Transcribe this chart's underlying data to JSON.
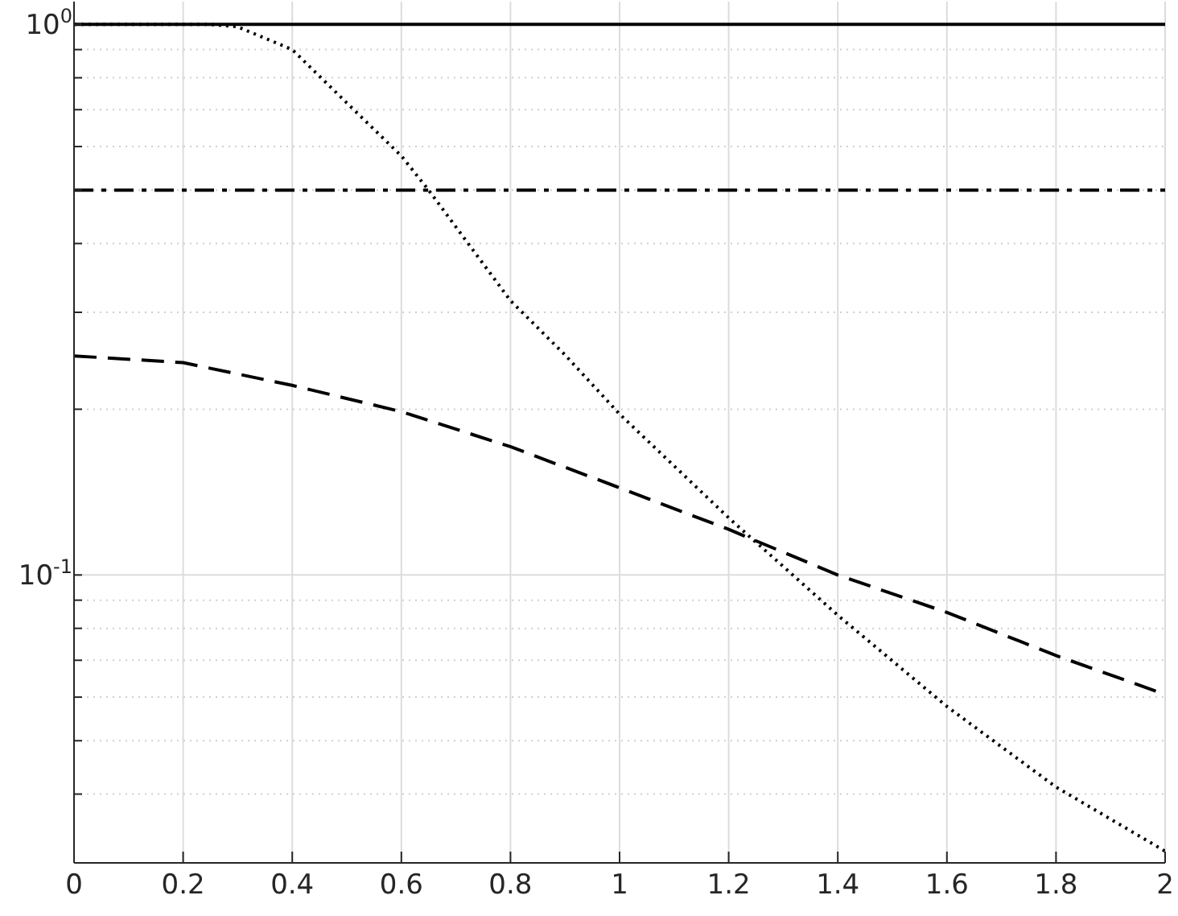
{
  "chart_data": {
    "type": "line",
    "log": "y",
    "grid": true,
    "xlim": [
      0,
      2
    ],
    "ylim": [
      0.03,
      1.1
    ],
    "xticks": [
      0,
      0.2,
      0.4,
      0.6,
      0.8,
      1,
      1.2,
      1.4,
      1.6,
      1.8,
      2
    ],
    "yticks": [
      {
        "value": 0.03,
        "label": null
      },
      {
        "value": 0.04,
        "label": null
      },
      {
        "value": 0.05,
        "label": null
      },
      {
        "value": 0.06,
        "label": null
      },
      {
        "value": 0.07,
        "label": null
      },
      {
        "value": 0.08,
        "label": null
      },
      {
        "value": 0.09,
        "label": null
      },
      {
        "value": 0.1,
        "label": "10$^{-1}$"
      },
      {
        "value": 0.2,
        "label": null
      },
      {
        "value": 0.3,
        "label": null
      },
      {
        "value": 0.4,
        "label": null
      },
      {
        "value": 0.5,
        "label": null
      },
      {
        "value": 0.6,
        "label": null
      },
      {
        "value": 0.7,
        "label": null
      },
      {
        "value": 0.8,
        "label": null
      },
      {
        "value": 0.9,
        "label": null
      },
      {
        "value": 1,
        "label": "10$^{0}$"
      }
    ],
    "series": [
      {
        "color": "#000000",
        "line_style": "solid",
        "x": [
          0,
          2
        ],
        "values": [
          1,
          1
        ]
      },
      {
        "color": "#000000",
        "line_style": "dash-dot",
        "x": [
          0,
          2
        ],
        "values": [
          0.5,
          0.5
        ]
      },
      {
        "color": "#000000",
        "line_style": "dashed",
        "x": [
          0,
          0.2,
          0.4,
          0.6,
          0.8,
          1,
          1.2,
          1.4,
          1.6,
          1.8,
          2
        ],
        "values": [
          0.25,
          0.243,
          0.221,
          0.198,
          0.171,
          0.144,
          0.121,
          0.1,
          0.0855,
          0.0714,
          0.0607
        ]
      },
      {
        "color": "#000000",
        "line_style": "dotted",
        "x": [
          0,
          0.25,
          0.3,
          0.4,
          0.5,
          0.6,
          0.65,
          0.8,
          0.9,
          1,
          1.2,
          1.4,
          1.6,
          1.8,
          2
        ],
        "values": [
          1,
          1,
          0.99,
          0.9,
          0.72,
          0.577,
          0.5,
          0.315,
          0.251,
          0.196,
          0.127,
          0.0845,
          0.0577,
          0.0412,
          0.0315
        ]
      }
    ]
  }
}
